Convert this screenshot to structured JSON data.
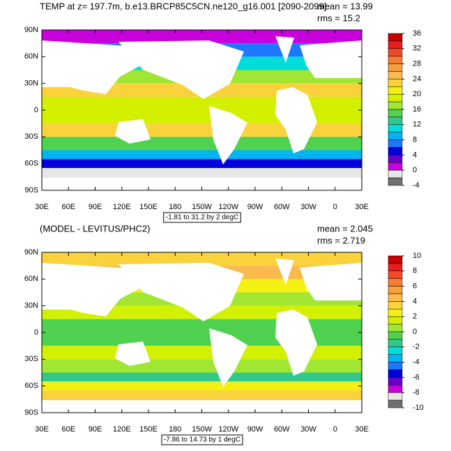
{
  "panels": [
    {
      "title": "TEMP at z= 197.7m, b.e13.BRCP85C5CN.ne120_g16.001 [2090-2099]",
      "mean_label": "mean = 13.99",
      "rms_label": "rms = 15.2",
      "info_label": "-1.81 to 31.2 by 2 degC",
      "lat_lim": [
        -90,
        90
      ],
      "lon_lim": [
        30,
        390
      ],
      "lat_ticks": [
        {
          "value": 90,
          "label": "90N"
        },
        {
          "value": 60,
          "label": "60N"
        },
        {
          "value": 30,
          "label": "30N"
        },
        0,
        {
          "value": -30,
          "label": "30S"
        },
        {
          "value": -60,
          "label": "60S"
        },
        {
          "value": -90,
          "label": "90S"
        }
      ],
      "lon_ticks": [
        {
          "value": 30,
          "label": "30E"
        },
        {
          "value": 60,
          "label": "60E"
        },
        {
          "value": 90,
          "label": "90E"
        },
        {
          "value": 120,
          "label": "120E"
        },
        {
          "value": 150,
          "label": "150E"
        },
        {
          "value": 180,
          "label": "180"
        },
        {
          "value": 210,
          "label": "150W"
        },
        {
          "value": 240,
          "label": "120W"
        },
        {
          "value": 270,
          "label": "90W"
        },
        {
          "value": 300,
          "label": "60W"
        },
        {
          "value": 330,
          "label": "30W"
        },
        {
          "value": 360,
          "label": "0"
        },
        {
          "value": 390,
          "label": "30E"
        }
      ],
      "colorbar_lim": [
        -4,
        36
      ],
      "colorbar_labels": [
        36,
        32,
        28,
        24,
        20,
        16,
        12,
        8,
        4,
        0,
        -4
      ],
      "colors": [
        "#c80000",
        "#e61e1e",
        "#f04b28",
        "#f57d32",
        "#f5a03c",
        "#faba50",
        "#fad23c",
        "#f5f014",
        "#d2f000",
        "#a0e632",
        "#50d250",
        "#32c88c",
        "#00dcdc",
        "#00b4f0",
        "#1e78ff",
        "#0000dc",
        "#6400c8",
        "#c800dc",
        "#e6e6e6",
        "#707070"
      ]
    },
    {
      "title": "(MODEL - LEVITUS/PHC2)",
      "mean_label": "mean = 2.045",
      "rms_label": "rms = 2.719",
      "info_label": "-7.86 to 14.73 by 1 degC",
      "lat_lim": [
        -90,
        90
      ],
      "lon_lim": [
        30,
        390
      ],
      "lat_ticks": [
        {
          "value": 90,
          "label": "90N"
        },
        {
          "value": 60,
          "label": "60N"
        },
        {
          "value": 30,
          "label": "30N"
        },
        0,
        {
          "value": -30,
          "label": "30S"
        },
        {
          "value": -60,
          "label": "60S"
        },
        {
          "value": -90,
          "label": "90S"
        }
      ],
      "lon_ticks": [
        {
          "value": 30,
          "label": "30E"
        },
        {
          "value": 60,
          "label": "60E"
        },
        {
          "value": 90,
          "label": "90E"
        },
        {
          "value": 120,
          "label": "120E"
        },
        {
          "value": 150,
          "label": "150E"
        },
        {
          "value": 180,
          "label": "180"
        },
        {
          "value": 210,
          "label": "150W"
        },
        {
          "value": 240,
          "label": "120W"
        },
        {
          "value": 270,
          "label": "90W"
        },
        {
          "value": 300,
          "label": "60W"
        },
        {
          "value": 330,
          "label": "30W"
        },
        {
          "value": 360,
          "label": "0"
        },
        {
          "value": 390,
          "label": "30E"
        }
      ],
      "colorbar_lim": [
        -10,
        10
      ],
      "colorbar_labels": [
        10,
        8,
        6,
        4,
        2,
        0,
        -2,
        -4,
        -6,
        -8,
        -10
      ],
      "colors": [
        "#c80000",
        "#e61e1e",
        "#f04b28",
        "#f57d32",
        "#f5a03c",
        "#faba50",
        "#fad23c",
        "#f5f014",
        "#d2f000",
        "#a0e632",
        "#50d250",
        "#32c88c",
        "#00dcdc",
        "#00b4f0",
        "#1e78ff",
        "#0000dc",
        "#6400c8",
        "#c800dc",
        "#e6e6e6",
        "#707070"
      ]
    }
  ]
}
